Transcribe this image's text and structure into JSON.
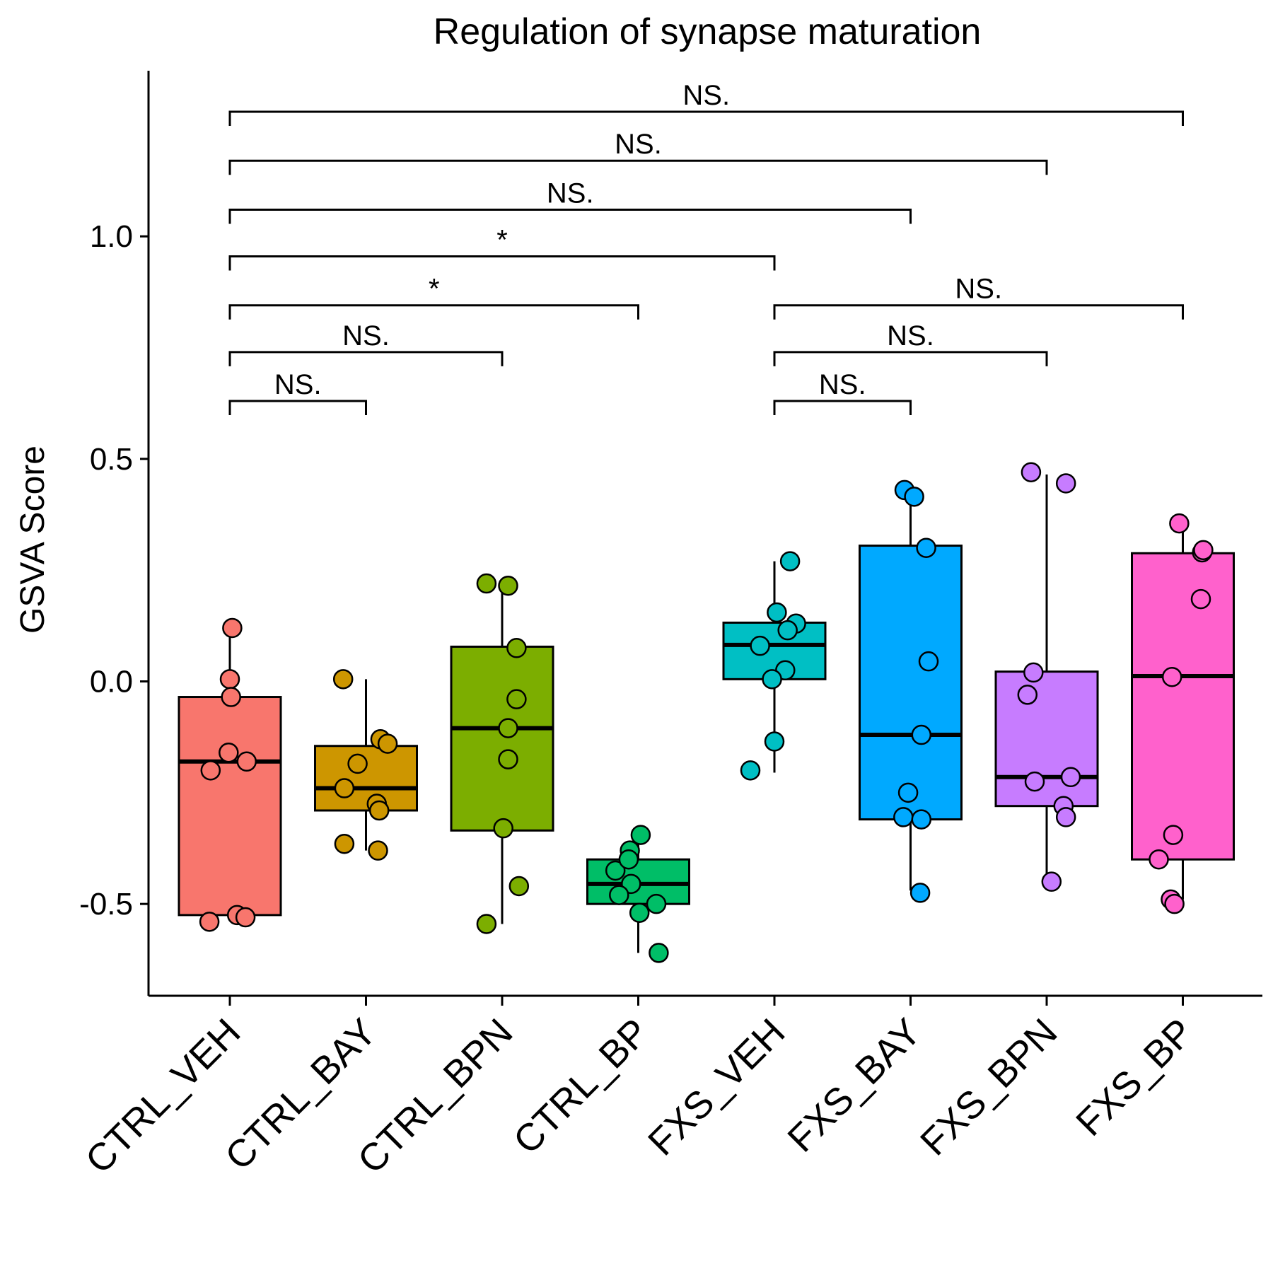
{
  "chart_data": {
    "type": "box",
    "title": "Regulation of synapse maturation",
    "ylabel": "GSVA Score",
    "xlabel": "",
    "ylim": [
      -0.7,
      1.38
    ],
    "yticks": [
      -0.5,
      0.0,
      0.5,
      1.0
    ],
    "ytick_labels": [
      "-0.5",
      "0.0",
      "0.5",
      "1.0"
    ],
    "grid": false,
    "legend": "none",
    "categories": [
      "CTRL_VEH",
      "CTRL_BAY",
      "CTRL_BPN",
      "CTRL_BP",
      "FXS_VEH",
      "FXS_BAY",
      "FXS_BPN",
      "FXS_BP"
    ],
    "colors": [
      "#F8766D",
      "#CD9600",
      "#7CAE00",
      "#00BE67",
      "#00BFC4",
      "#00A9FF",
      "#C77CFF",
      "#FF61CC"
    ],
    "boxes": [
      {
        "lower_whisker": -0.53,
        "q1": -0.525,
        "median": -0.18,
        "q3": -0.035,
        "upper_whisker": 0.115
      },
      {
        "lower_whisker": -0.38,
        "q1": -0.29,
        "median": -0.24,
        "q3": -0.145,
        "upper_whisker": 0.005
      },
      {
        "lower_whisker": -0.545,
        "q1": -0.335,
        "median": -0.105,
        "q3": 0.078,
        "upper_whisker": 0.225
      },
      {
        "lower_whisker": -0.61,
        "q1": -0.5,
        "median": -0.455,
        "q3": -0.4,
        "upper_whisker": -0.345
      },
      {
        "lower_whisker": -0.205,
        "q1": 0.005,
        "median": 0.082,
        "q3": 0.132,
        "upper_whisker": 0.27
      },
      {
        "lower_whisker": -0.47,
        "q1": -0.31,
        "median": -0.12,
        "q3": 0.305,
        "upper_whisker": 0.43
      },
      {
        "lower_whisker": -0.45,
        "q1": -0.28,
        "median": -0.215,
        "q3": 0.022,
        "upper_whisker": 0.465
      },
      {
        "lower_whisker": -0.49,
        "q1": -0.4,
        "median": 0.012,
        "q3": 0.288,
        "upper_whisker": 0.355
      }
    ],
    "points": [
      [
        [
          0.02,
          0.12
        ],
        [
          0.0,
          0.005
        ],
        [
          0.01,
          -0.035
        ],
        [
          -0.01,
          -0.16
        ],
        [
          -0.16,
          -0.2
        ],
        [
          0.14,
          -0.18
        ],
        [
          -0.17,
          -0.54
        ],
        [
          0.06,
          -0.525
        ],
        [
          0.13,
          -0.53
        ]
      ],
      [
        [
          -0.19,
          0.005
        ],
        [
          0.12,
          -0.13
        ],
        [
          0.18,
          -0.14
        ],
        [
          -0.07,
          -0.185
        ],
        [
          -0.18,
          -0.24
        ],
        [
          0.09,
          -0.275
        ],
        [
          0.11,
          -0.29
        ],
        [
          -0.18,
          -0.365
        ],
        [
          0.1,
          -0.38
        ]
      ],
      [
        [
          -0.13,
          0.22
        ],
        [
          0.05,
          0.215
        ],
        [
          0.12,
          0.075
        ],
        [
          0.12,
          -0.04
        ],
        [
          0.05,
          -0.105
        ],
        [
          0.05,
          -0.175
        ],
        [
          0.01,
          -0.33
        ],
        [
          0.14,
          -0.46
        ],
        [
          -0.13,
          -0.545
        ]
      ],
      [
        [
          -0.19,
          -0.425
        ],
        [
          -0.07,
          -0.38
        ],
        [
          0.02,
          -0.345
        ],
        [
          -0.08,
          -0.4
        ],
        [
          -0.06,
          -0.455
        ],
        [
          -0.16,
          -0.48
        ],
        [
          0.15,
          -0.5
        ],
        [
          0.01,
          -0.52
        ],
        [
          0.17,
          -0.61
        ]
      ],
      [
        [
          0.13,
          0.27
        ],
        [
          0.02,
          0.155
        ],
        [
          0.18,
          0.13
        ],
        [
          0.11,
          0.115
        ],
        [
          -0.12,
          0.08
        ],
        [
          0.09,
          0.025
        ],
        [
          -0.02,
          0.005
        ],
        [
          0.0,
          -0.135
        ],
        [
          -0.2,
          -0.2
        ]
      ],
      [
        [
          -0.05,
          0.43
        ],
        [
          0.03,
          0.415
        ],
        [
          0.13,
          0.3
        ],
        [
          0.15,
          0.045
        ],
        [
          0.09,
          -0.12
        ],
        [
          -0.02,
          -0.25
        ],
        [
          -0.06,
          -0.305
        ],
        [
          0.09,
          -0.31
        ],
        [
          0.08,
          -0.475
        ]
      ],
      [
        [
          -0.13,
          0.47
        ],
        [
          0.16,
          0.445
        ],
        [
          -0.11,
          0.02
        ],
        [
          -0.16,
          -0.03
        ],
        [
          -0.1,
          -0.225
        ],
        [
          0.2,
          -0.215
        ],
        [
          0.14,
          -0.28
        ],
        [
          0.16,
          -0.305
        ],
        [
          0.04,
          -0.45
        ]
      ],
      [
        [
          -0.03,
          0.355
        ],
        [
          0.16,
          0.29
        ],
        [
          0.15,
          0.185
        ],
        [
          -0.09,
          0.01
        ],
        [
          -0.08,
          -0.345
        ],
        [
          -0.2,
          -0.4
        ],
        [
          -0.1,
          -0.49
        ],
        [
          -0.07,
          -0.5
        ],
        [
          0.17,
          0.295
        ]
      ]
    ],
    "comparisons": [
      {
        "from": 0,
        "to": 1,
        "y": 0.63,
        "label": "NS."
      },
      {
        "from": 0,
        "to": 2,
        "y": 0.74,
        "label": "NS."
      },
      {
        "from": 0,
        "to": 3,
        "y": 0.845,
        "label": "*"
      },
      {
        "from": 0,
        "to": 4,
        "y": 0.955,
        "label": "*"
      },
      {
        "from": 0,
        "to": 5,
        "y": 1.06,
        "label": "NS."
      },
      {
        "from": 0,
        "to": 6,
        "y": 1.17,
        "label": "NS."
      },
      {
        "from": 0,
        "to": 7,
        "y": 1.28,
        "label": "NS."
      },
      {
        "from": 4,
        "to": 5,
        "y": 0.63,
        "label": "NS."
      },
      {
        "from": 4,
        "to": 6,
        "y": 0.74,
        "label": "NS."
      },
      {
        "from": 4,
        "to": 7,
        "y": 0.845,
        "label": "NS."
      }
    ]
  }
}
